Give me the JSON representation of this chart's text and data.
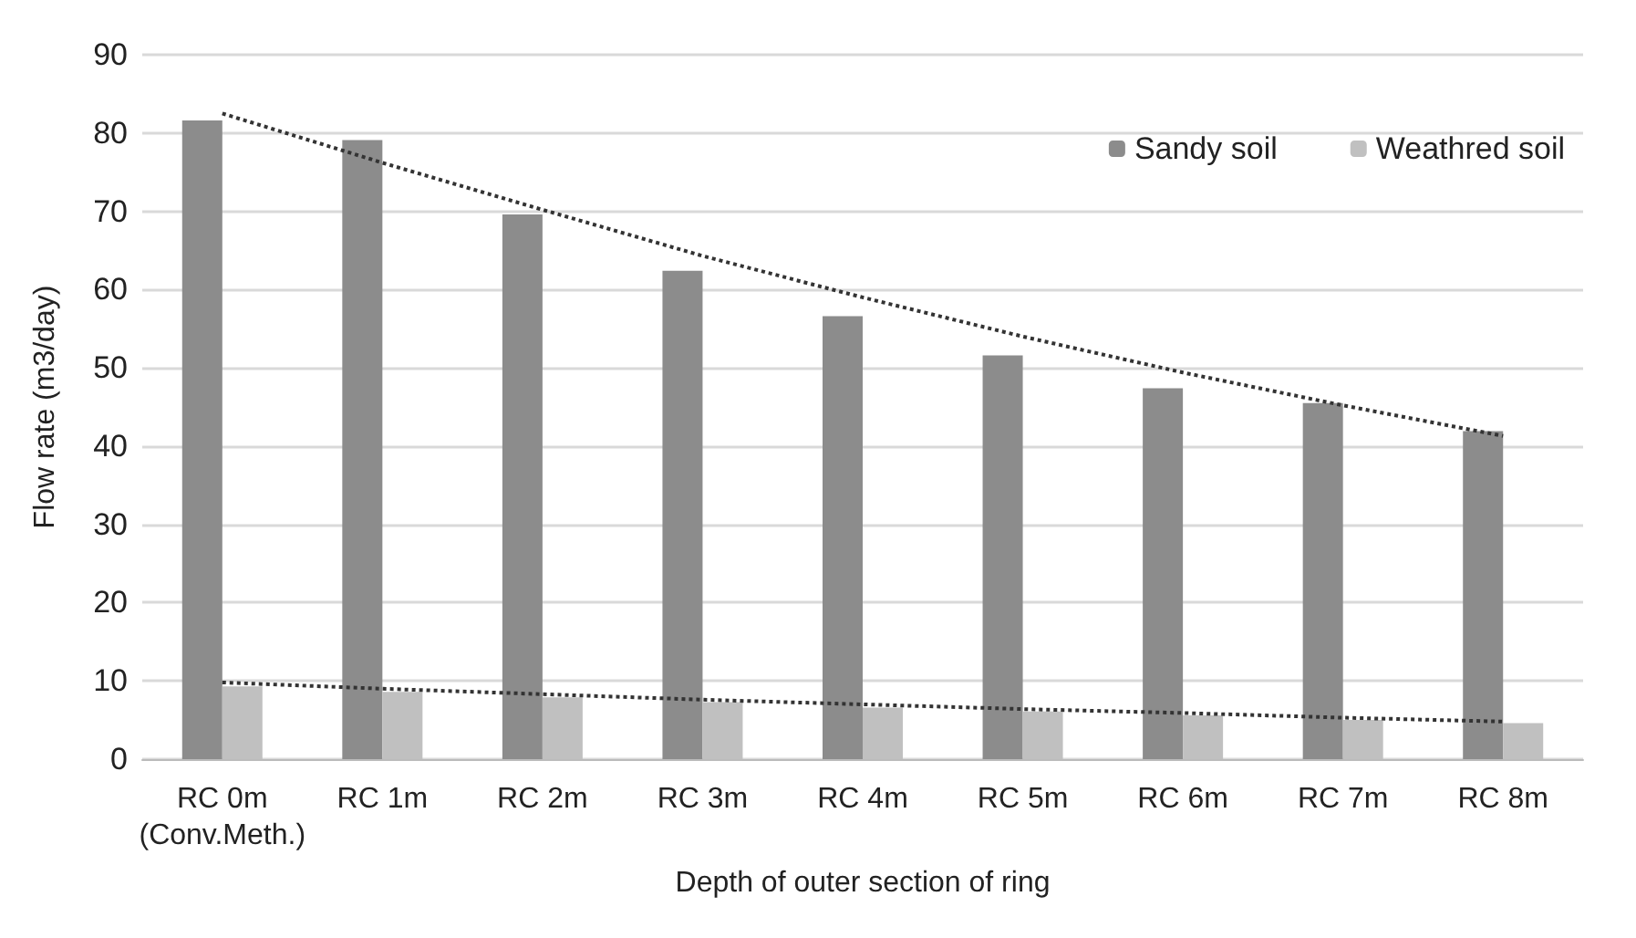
{
  "chart_data": {
    "type": "bar",
    "xlabel": "Depth of outer section of ring",
    "ylabel": "Flow rate (m3/day)",
    "categories": [
      "RC 0m\n(Conv.Meth.)",
      "RC 1m",
      "RC 2m",
      "RC 3m",
      "RC 4m",
      "RC 5m",
      "RC 6m",
      "RC 7m",
      "RC 8m"
    ],
    "series": [
      {
        "name": "Sandy soil",
        "color": "#8c8c8c",
        "values": [
          81.6,
          79.1,
          69.6,
          62.4,
          56.6,
          51.6,
          47.4,
          45.5,
          41.9
        ]
      },
      {
        "name": "Weathred soil",
        "color": "#c0c0c0",
        "values": [
          9.3,
          8.6,
          7.9,
          7.3,
          6.6,
          6.1,
          5.6,
          5.0,
          4.6
        ]
      },
      {
        "type": "line",
        "color": "#333333",
        "line_style": "dotted",
        "marker": "none",
        "values": [
          82.5,
          76.2,
          70.2,
          64.3,
          59.0,
          54.0,
          49.4,
          45.2,
          41.3
        ]
      },
      {
        "type": "line",
        "color": "#333333",
        "line_style": "dotted",
        "marker": "none",
        "values": [
          9.8,
          9.0,
          8.3,
          7.6,
          7.0,
          6.4,
          5.9,
          5.3,
          4.8
        ]
      }
    ],
    "ylim": [
      0,
      90
    ],
    "yticks": [
      0,
      10,
      20,
      30,
      40,
      50,
      60,
      70,
      80,
      90
    ],
    "grid": "y",
    "legend": "top right"
  }
}
